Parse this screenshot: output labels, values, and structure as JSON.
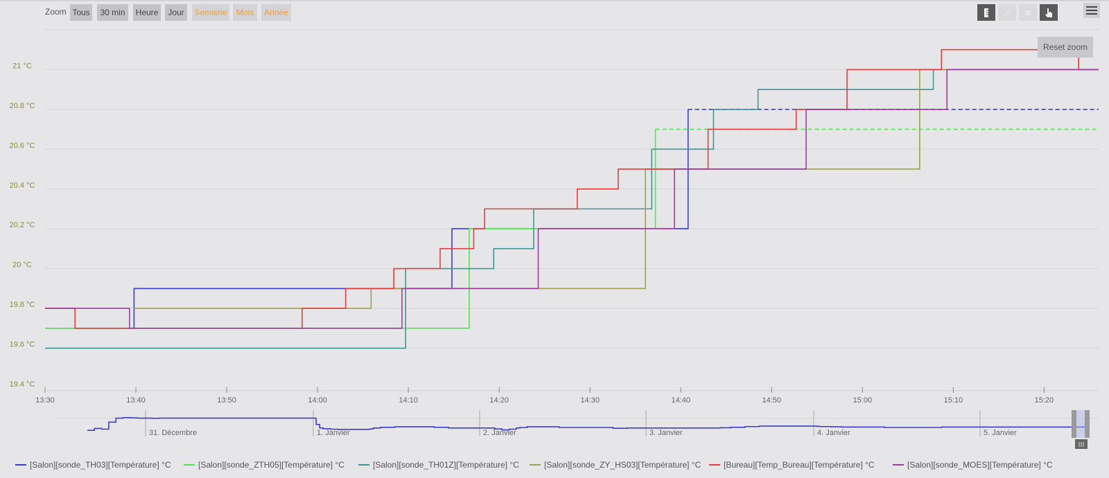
{
  "toolbar": {
    "zoom_label": "Zoom",
    "range_buttons": [
      {
        "label": "Tous",
        "enabled": true
      },
      {
        "label": "30 min",
        "enabled": true
      },
      {
        "label": "Heure",
        "enabled": true
      },
      {
        "label": "Jour",
        "enabled": true
      },
      {
        "label": "Semaine",
        "enabled": false
      },
      {
        "label": "Mois",
        "enabled": false
      },
      {
        "label": "Année",
        "enabled": false
      }
    ],
    "tools": [
      {
        "icon": "ruler-icon",
        "active": true
      },
      {
        "icon": "pencil-icon",
        "active": false
      },
      {
        "icon": "eraser-icon",
        "active": false
      },
      {
        "icon": "hand-pointer-icon",
        "active": true
      }
    ],
    "menu_icon": "hamburger-menu-icon",
    "reset_zoom_label": "Reset zoom"
  },
  "colors": {
    "TH03": "#3c3cc8",
    "ZTH05": "#50e650",
    "TH01Z": "#3c9696",
    "ZY_HS03": "#a0a050",
    "Bureau": "#e63c3c",
    "MOES": "#9b3c9b",
    "axis_label": "#8a8a3c"
  },
  "chart_data": {
    "type": "line",
    "step": true,
    "title": "",
    "xlabel": "",
    "ylabel": "",
    "x_unit": "minutes after 13:30",
    "xlim": [
      0,
      116
    ],
    "ylim": [
      19.4,
      21.2
    ],
    "grid": true,
    "legend_position": "bottom",
    "y_ticks": [
      {
        "value": 19.4,
        "label": "19.4 °C"
      },
      {
        "value": 19.6,
        "label": "19.6 °C"
      },
      {
        "value": 19.8,
        "label": "19.8 °C"
      },
      {
        "value": 20.0,
        "label": "20 °C"
      },
      {
        "value": 20.2,
        "label": "20.2 °C"
      },
      {
        "value": 20.4,
        "label": "20.4 °C"
      },
      {
        "value": 20.6,
        "label": "20.6 °C"
      },
      {
        "value": 20.8,
        "label": "20.8 °C"
      },
      {
        "value": 21.0,
        "label": "21 °C"
      }
    ],
    "x_ticks": [
      {
        "value": 0,
        "label": "13:30"
      },
      {
        "value": 10,
        "label": "13:40"
      },
      {
        "value": 20,
        "label": "13:50"
      },
      {
        "value": 30,
        "label": "14:00"
      },
      {
        "value": 40,
        "label": "14:10"
      },
      {
        "value": 50,
        "label": "14:20"
      },
      {
        "value": 60,
        "label": "14:30"
      },
      {
        "value": 70,
        "label": "14:40"
      },
      {
        "value": 80,
        "label": "14:50"
      },
      {
        "value": 90,
        "label": "15:00"
      },
      {
        "value": 100,
        "label": "15:10"
      },
      {
        "value": 110,
        "label": "15:20"
      }
    ],
    "series": [
      {
        "name": "[Salon][sonde_TH03][Température] °C",
        "key": "TH03",
        "points": [
          [
            0,
            19.7
          ],
          [
            9.8,
            19.9
          ],
          [
            44.8,
            20.2
          ],
          [
            70.8,
            20.8
          ]
        ],
        "dashed_from": 70.8
      },
      {
        "name": "[Salon][sonde_ZTH05][Température] °C",
        "key": "ZTH05",
        "points": [
          [
            0,
            19.7
          ],
          [
            46.7,
            20.2
          ],
          [
            67.2,
            20.7
          ]
        ],
        "dashed_from": 67.2
      },
      {
        "name": "[Salon][sonde_TH01Z][Température] °C",
        "key": "TH01Z",
        "points": [
          [
            0,
            19.6
          ],
          [
            39.7,
            20.0
          ],
          [
            49.4,
            20.1
          ],
          [
            53.8,
            20.3
          ],
          [
            66.8,
            20.6
          ],
          [
            73.6,
            20.8
          ],
          [
            78.5,
            20.9
          ],
          [
            97.8,
            21.0
          ]
        ]
      },
      {
        "name": "[Salon][sonde_ZY_HS03][Température] °C",
        "key": "ZY_HS03",
        "points": [
          [
            9.8,
            19.8
          ],
          [
            35.9,
            19.9
          ],
          [
            66.1,
            20.5
          ],
          [
            96.3,
            21.0
          ]
        ]
      },
      {
        "name": "[Bureau][Temp_Bureau][Température] °C",
        "key": "Bureau",
        "points": [
          [
            0,
            19.8
          ],
          [
            3.3,
            19.7
          ],
          [
            28.3,
            19.8
          ],
          [
            33.1,
            19.9
          ],
          [
            38.4,
            20.0
          ],
          [
            43.5,
            20.1
          ],
          [
            47.2,
            20.2
          ],
          [
            48.4,
            20.3
          ],
          [
            58.6,
            20.4
          ],
          [
            63.1,
            20.5
          ],
          [
            73.0,
            20.7
          ],
          [
            82.7,
            20.8
          ],
          [
            88.3,
            21.0
          ],
          [
            98.7,
            21.1
          ],
          [
            113.8,
            21.0
          ]
        ]
      },
      {
        "name": "[Salon][sonde_MOES][Température] °C",
        "key": "MOES",
        "points": [
          [
            0,
            19.8
          ],
          [
            9.3,
            19.7
          ],
          [
            39.3,
            19.9
          ],
          [
            54.3,
            20.2
          ],
          [
            69.3,
            20.5
          ],
          [
            83.8,
            20.8
          ],
          [
            99.3,
            21.0
          ]
        ]
      }
    ],
    "navigator": {
      "date_labels": [
        "31. Décembre",
        "1. Janvier",
        "2. Janvier",
        "3. Janvier",
        "4. Janvier",
        "5. Janvier"
      ],
      "series_key": "TH03",
      "profile": [
        0.2,
        0.2,
        0.28,
        0.28,
        0.25,
        0.25,
        0.55,
        0.55,
        0.72,
        0.72,
        0.74,
        0.74,
        0.73,
        0.73,
        0.72,
        0.72,
        0.72,
        0.72,
        0.71,
        0.71,
        0.72,
        0.72,
        0.72,
        0.72,
        0.72,
        0.72,
        0.72,
        0.72,
        0.72,
        0.72,
        0.72,
        0.72,
        0.72,
        0.72,
        0.72,
        0.72,
        0.72,
        0.72,
        0.72,
        0.72,
        0.72,
        0.72,
        0.72,
        0.72,
        0.72,
        0.72,
        0.72,
        0.72,
        0.72,
        0.72,
        0.72,
        0.72,
        0.72,
        0.72,
        0.72,
        0.72,
        0.72,
        0.72,
        0.72,
        0.72,
        0.72,
        0.72,
        0.72,
        0.72,
        0.45,
        0.3,
        0.27,
        0.27,
        0.25,
        0.25,
        0.24,
        0.24,
        0.24,
        0.24,
        0.24,
        0.24,
        0.24,
        0.24,
        0.24,
        0.26,
        0.3,
        0.3,
        0.33,
        0.33,
        0.33,
        0.33,
        0.35,
        0.35,
        0.35,
        0.35,
        0.35,
        0.35,
        0.35,
        0.35,
        0.35,
        0.35,
        0.35,
        0.33,
        0.33,
        0.33,
        0.33,
        0.3,
        0.3,
        0.3,
        0.3,
        0.3,
        0.3,
        0.3,
        0.3,
        0.3,
        0.3,
        0.3,
        0.3,
        0.3,
        0.26,
        0.26,
        0.22,
        0.22,
        0.25,
        0.25,
        0.3,
        0.32,
        0.32,
        0.35,
        0.35,
        0.35,
        0.35,
        0.35,
        0.35,
        0.35,
        0.35,
        0.35,
        0.32,
        0.32,
        0.32,
        0.32,
        0.32,
        0.32,
        0.32,
        0.32,
        0.32,
        0.32,
        0.32,
        0.32,
        0.32,
        0.32,
        0.32,
        0.29,
        0.29,
        0.29,
        0.29,
        0.3,
        0.3,
        0.3,
        0.3,
        0.3,
        0.3,
        0.3,
        0.3,
        0.3,
        0.3,
        0.3,
        0.3,
        0.3,
        0.3,
        0.3,
        0.3,
        0.3,
        0.3,
        0.3,
        0.3,
        0.3,
        0.3,
        0.3,
        0.3,
        0.3,
        0.3,
        0.31,
        0.31,
        0.31,
        0.33,
        0.33,
        0.33,
        0.33,
        0.36,
        0.36,
        0.36,
        0.36,
        0.38,
        0.38,
        0.38,
        0.38,
        0.38,
        0.38,
        0.38,
        0.38,
        0.38,
        0.38,
        0.38,
        0.38,
        0.38,
        0.38,
        0.38,
        0.38,
        0.37,
        0.36,
        0.36,
        0.36,
        0.35,
        0.35,
        0.35,
        0.34,
        0.34,
        0.34,
        0.34,
        0.34,
        0.34,
        0.34,
        0.34,
        0.34,
        0.34,
        0.34,
        0.34,
        0.32,
        0.32,
        0.32,
        0.32,
        0.32,
        0.32,
        0.32,
        0.32,
        0.32,
        0.32,
        0.32,
        0.32,
        0.32,
        0.32,
        0.32,
        0.32,
        0.34,
        0.34,
        0.34,
        0.34,
        0.34,
        0.34,
        0.34,
        0.34,
        0.34,
        0.34,
        0.34,
        0.34,
        0.34,
        0.34,
        0.34,
        0.34,
        0.34,
        0.34,
        0.34,
        0.34,
        0.34,
        0.34,
        0.34,
        0.34,
        0.34,
        0.34,
        0.34,
        0.34,
        0.34,
        0.34,
        0.34,
        0.34,
        0.34,
        0.34,
        0.34,
        0.34,
        0.34,
        0.34,
        0.34,
        0.34,
        0.34
      ]
    }
  }
}
